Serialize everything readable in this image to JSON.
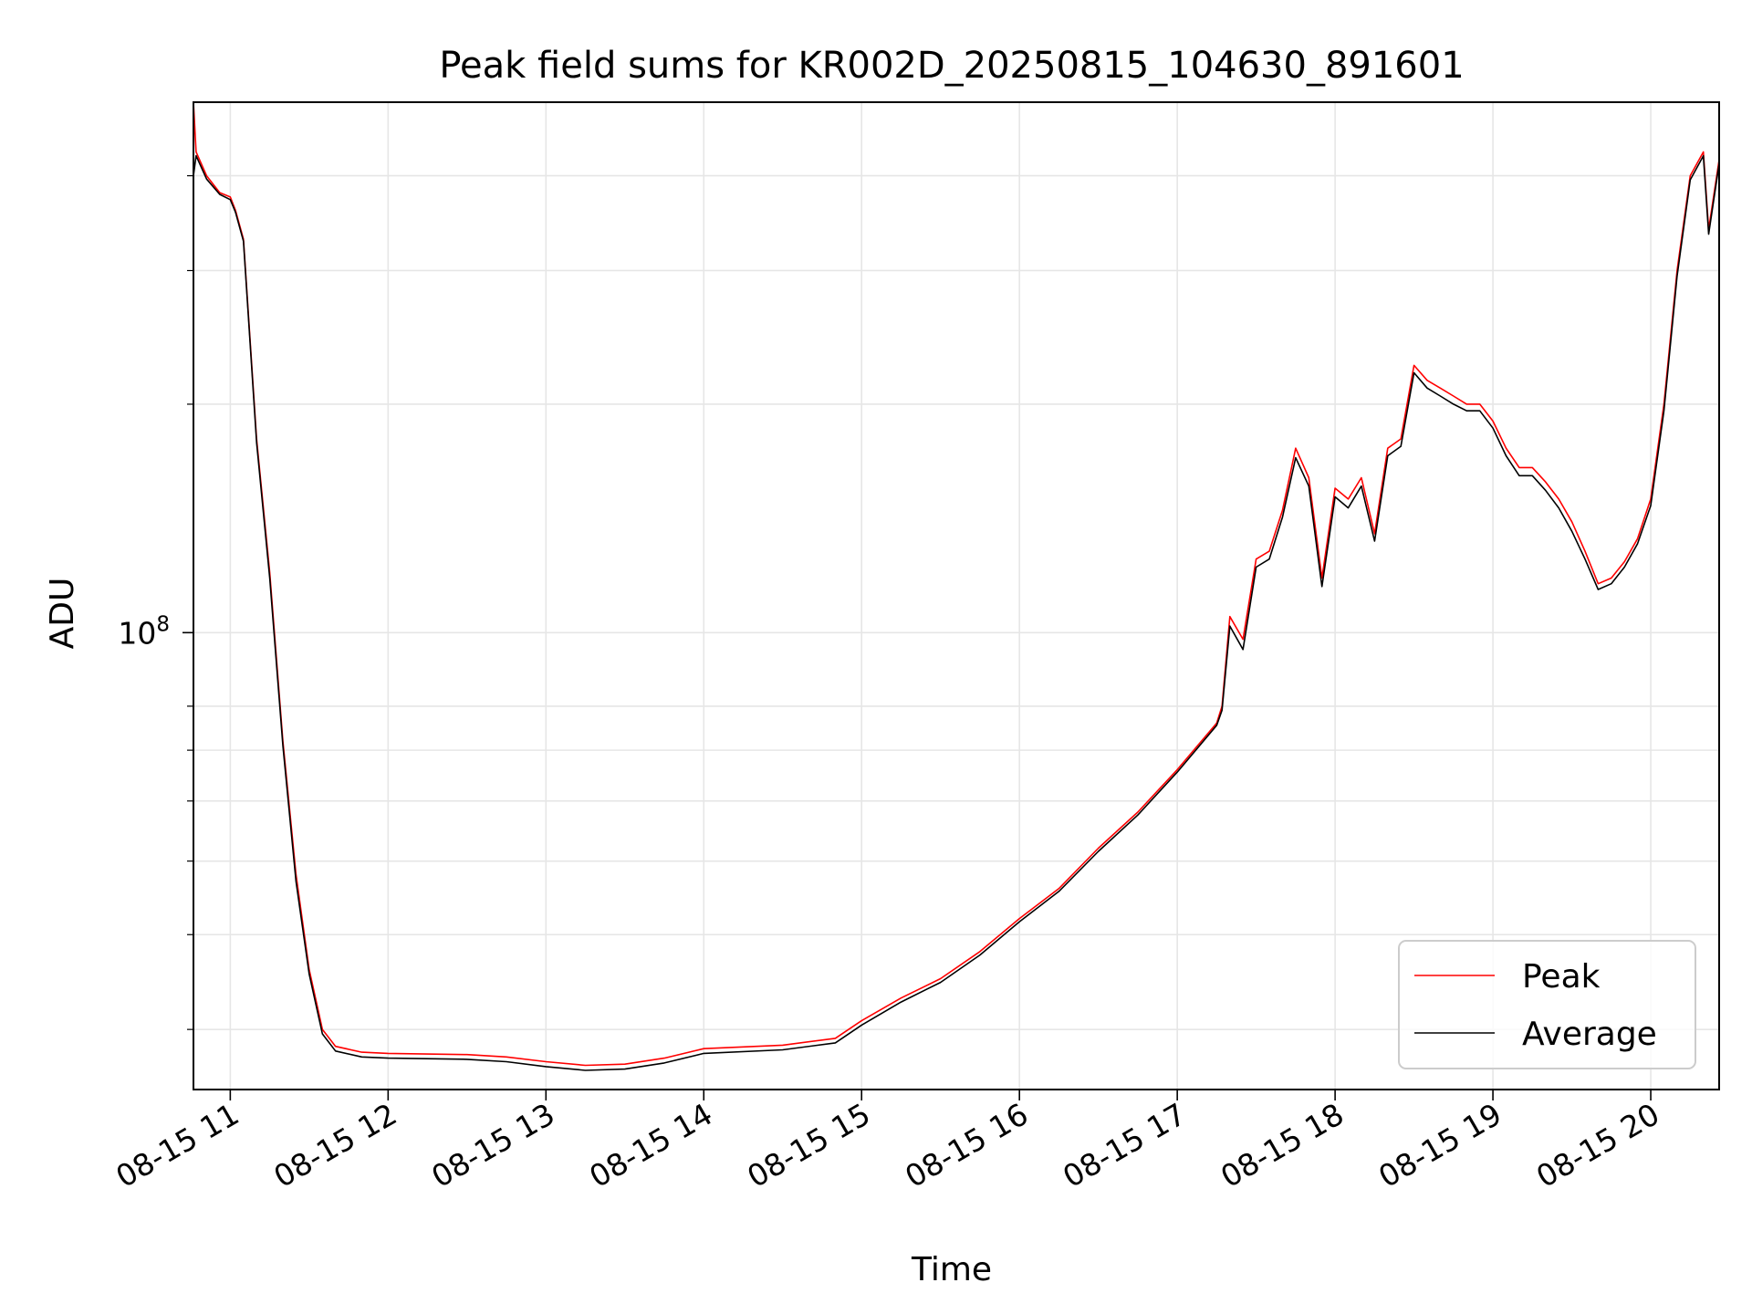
{
  "chart_data": {
    "type": "line",
    "title": "Peak field sums for KR002D_20250815_104630_891601",
    "xlabel": "Time",
    "ylabel": "ADU",
    "y_scale": "log",
    "xlim": [
      "2025-08-15 10:46",
      "2025-08-15 20:26"
    ],
    "ylim": [
      25000000,
      500000000
    ],
    "x_tick_labels": [
      "08-15 11",
      "08-15 12",
      "08-15 13",
      "08-15 14",
      "08-15 15",
      "08-15 16",
      "08-15 17",
      "08-15 18",
      "08-15 19",
      "08-15 20"
    ],
    "y_tick_major": [
      {
        "value": 100000000,
        "base": "10",
        "exp": "8"
      }
    ],
    "y_minor_ticks": [
      30000000,
      40000000,
      50000000,
      60000000,
      70000000,
      80000000,
      200000000,
      300000000,
      400000000
    ],
    "grid": true,
    "legend_position": "lower-right",
    "series": [
      {
        "name": "Peak",
        "color": "#ff0000",
        "points": [
          [
            "2025-08-15 10:46",
            500000000
          ],
          [
            "2025-08-15 10:47",
            430000000
          ],
          [
            "2025-08-15 10:51",
            400000000
          ],
          [
            "2025-08-15 10:56",
            380000000
          ],
          [
            "2025-08-15 11:00",
            375000000
          ],
          [
            "2025-08-15 11:02",
            360000000
          ],
          [
            "2025-08-15 11:05",
            330000000
          ],
          [
            "2025-08-15 11:10",
            180000000
          ],
          [
            "2025-08-15 11:15",
            120000000
          ],
          [
            "2025-08-15 11:20",
            72000000
          ],
          [
            "2025-08-15 11:25",
            48000000
          ],
          [
            "2025-08-15 11:30",
            36000000
          ],
          [
            "2025-08-15 11:35",
            30000000
          ],
          [
            "2025-08-15 11:40",
            28500000
          ],
          [
            "2025-08-15 11:50",
            28000000
          ],
          [
            "2025-08-15 12:00",
            27900000
          ],
          [
            "2025-08-15 12:30",
            27800000
          ],
          [
            "2025-08-15 12:45",
            27600000
          ],
          [
            "2025-08-15 13:00",
            27200000
          ],
          [
            "2025-08-15 13:15",
            26900000
          ],
          [
            "2025-08-15 13:30",
            27000000
          ],
          [
            "2025-08-15 13:45",
            27500000
          ],
          [
            "2025-08-15 14:00",
            28300000
          ],
          [
            "2025-08-15 14:30",
            28600000
          ],
          [
            "2025-08-15 14:50",
            29200000
          ],
          [
            "2025-08-15 15:00",
            30800000
          ],
          [
            "2025-08-15 15:15",
            33000000
          ],
          [
            "2025-08-15 15:30",
            35000000
          ],
          [
            "2025-08-15 15:45",
            38000000
          ],
          [
            "2025-08-15 16:00",
            42000000
          ],
          [
            "2025-08-15 16:15",
            46000000
          ],
          [
            "2025-08-15 16:30",
            52000000
          ],
          [
            "2025-08-15 16:45",
            58000000
          ],
          [
            "2025-08-15 17:00",
            66000000
          ],
          [
            "2025-08-15 17:15",
            76000000
          ],
          [
            "2025-08-15 17:17",
            80000000
          ],
          [
            "2025-08-15 17:20",
            105000000
          ],
          [
            "2025-08-15 17:25",
            98000000
          ],
          [
            "2025-08-15 17:30",
            125000000
          ],
          [
            "2025-08-15 17:35",
            128000000
          ],
          [
            "2025-08-15 17:40",
            145000000
          ],
          [
            "2025-08-15 17:45",
            175000000
          ],
          [
            "2025-08-15 17:50",
            160000000
          ],
          [
            "2025-08-15 17:55",
            118000000
          ],
          [
            "2025-08-15 18:00",
            155000000
          ],
          [
            "2025-08-15 18:05",
            150000000
          ],
          [
            "2025-08-15 18:10",
            160000000
          ],
          [
            "2025-08-15 18:15",
            135000000
          ],
          [
            "2025-08-15 18:20",
            175000000
          ],
          [
            "2025-08-15 18:25",
            180000000
          ],
          [
            "2025-08-15 18:30",
            225000000
          ],
          [
            "2025-08-15 18:35",
            215000000
          ],
          [
            "2025-08-15 18:40",
            210000000
          ],
          [
            "2025-08-15 18:45",
            205000000
          ],
          [
            "2025-08-15 18:50",
            200000000
          ],
          [
            "2025-08-15 18:55",
            200000000
          ],
          [
            "2025-08-15 19:00",
            190000000
          ],
          [
            "2025-08-15 19:05",
            175000000
          ],
          [
            "2025-08-15 19:10",
            165000000
          ],
          [
            "2025-08-15 19:15",
            165000000
          ],
          [
            "2025-08-15 19:20",
            158000000
          ],
          [
            "2025-08-15 19:25",
            150000000
          ],
          [
            "2025-08-15 19:30",
            140000000
          ],
          [
            "2025-08-15 19:35",
            128000000
          ],
          [
            "2025-08-15 19:40",
            116000000
          ],
          [
            "2025-08-15 19:45",
            118000000
          ],
          [
            "2025-08-15 19:50",
            124000000
          ],
          [
            "2025-08-15 19:55",
            133000000
          ],
          [
            "2025-08-15 20:00",
            150000000
          ],
          [
            "2025-08-15 20:05",
            200000000
          ],
          [
            "2025-08-15 20:10",
            300000000
          ],
          [
            "2025-08-15 20:15",
            400000000
          ],
          [
            "2025-08-15 20:20",
            430000000
          ],
          [
            "2025-08-15 20:22",
            340000000
          ],
          [
            "2025-08-15 20:26",
            420000000
          ]
        ]
      },
      {
        "name": "Average",
        "color": "#000000",
        "points": [
          [
            "2025-08-15 10:46",
            400000000
          ],
          [
            "2025-08-15 10:47",
            425000000
          ],
          [
            "2025-08-15 10:51",
            396000000
          ],
          [
            "2025-08-15 10:56",
            378000000
          ],
          [
            "2025-08-15 11:00",
            372000000
          ],
          [
            "2025-08-15 11:02",
            358000000
          ],
          [
            "2025-08-15 11:05",
            328000000
          ],
          [
            "2025-08-15 11:10",
            178000000
          ],
          [
            "2025-08-15 11:15",
            118000000
          ],
          [
            "2025-08-15 11:20",
            71000000
          ],
          [
            "2025-08-15 11:25",
            47000000
          ],
          [
            "2025-08-15 11:30",
            35500000
          ],
          [
            "2025-08-15 11:35",
            29600000
          ],
          [
            "2025-08-15 11:40",
            28100000
          ],
          [
            "2025-08-15 11:50",
            27600000
          ],
          [
            "2025-08-15 12:00",
            27500000
          ],
          [
            "2025-08-15 12:30",
            27400000
          ],
          [
            "2025-08-15 12:45",
            27200000
          ],
          [
            "2025-08-15 13:00",
            26800000
          ],
          [
            "2025-08-15 13:15",
            26500000
          ],
          [
            "2025-08-15 13:30",
            26600000
          ],
          [
            "2025-08-15 13:45",
            27100000
          ],
          [
            "2025-08-15 14:00",
            27900000
          ],
          [
            "2025-08-15 14:30",
            28200000
          ],
          [
            "2025-08-15 14:50",
            28800000
          ],
          [
            "2025-08-15 15:00",
            30400000
          ],
          [
            "2025-08-15 15:15",
            32600000
          ],
          [
            "2025-08-15 15:30",
            34600000
          ],
          [
            "2025-08-15 15:45",
            37600000
          ],
          [
            "2025-08-15 16:00",
            41600000
          ],
          [
            "2025-08-15 16:15",
            45600000
          ],
          [
            "2025-08-15 16:30",
            51500000
          ],
          [
            "2025-08-15 16:45",
            57500000
          ],
          [
            "2025-08-15 17:00",
            65500000
          ],
          [
            "2025-08-15 17:15",
            75500000
          ],
          [
            "2025-08-15 17:17",
            79000000
          ],
          [
            "2025-08-15 17:20",
            102000000
          ],
          [
            "2025-08-15 17:25",
            95000000
          ],
          [
            "2025-08-15 17:30",
            122000000
          ],
          [
            "2025-08-15 17:35",
            125000000
          ],
          [
            "2025-08-15 17:40",
            142000000
          ],
          [
            "2025-08-15 17:45",
            170000000
          ],
          [
            "2025-08-15 17:50",
            156000000
          ],
          [
            "2025-08-15 17:55",
            115000000
          ],
          [
            "2025-08-15 18:00",
            151000000
          ],
          [
            "2025-08-15 18:05",
            146000000
          ],
          [
            "2025-08-15 18:10",
            156000000
          ],
          [
            "2025-08-15 18:15",
            132000000
          ],
          [
            "2025-08-15 18:20",
            171000000
          ],
          [
            "2025-08-15 18:25",
            176000000
          ],
          [
            "2025-08-15 18:30",
            220000000
          ],
          [
            "2025-08-15 18:35",
            210000000
          ],
          [
            "2025-08-15 18:40",
            205000000
          ],
          [
            "2025-08-15 18:45",
            200000000
          ],
          [
            "2025-08-15 18:50",
            196000000
          ],
          [
            "2025-08-15 18:55",
            196000000
          ],
          [
            "2025-08-15 19:00",
            186000000
          ],
          [
            "2025-08-15 19:05",
            171000000
          ],
          [
            "2025-08-15 19:10",
            161000000
          ],
          [
            "2025-08-15 19:15",
            161000000
          ],
          [
            "2025-08-15 19:20",
            154000000
          ],
          [
            "2025-08-15 19:25",
            146000000
          ],
          [
            "2025-08-15 19:30",
            136000000
          ],
          [
            "2025-08-15 19:35",
            125000000
          ],
          [
            "2025-08-15 19:40",
            114000000
          ],
          [
            "2025-08-15 19:45",
            116000000
          ],
          [
            "2025-08-15 19:50",
            122000000
          ],
          [
            "2025-08-15 19:55",
            131000000
          ],
          [
            "2025-08-15 20:00",
            147000000
          ],
          [
            "2025-08-15 20:05",
            196000000
          ],
          [
            "2025-08-15 20:10",
            295000000
          ],
          [
            "2025-08-15 20:15",
            395000000
          ],
          [
            "2025-08-15 20:20",
            425000000
          ],
          [
            "2025-08-15 20:22",
            335000000
          ],
          [
            "2025-08-15 20:26",
            415000000
          ]
        ]
      }
    ]
  }
}
